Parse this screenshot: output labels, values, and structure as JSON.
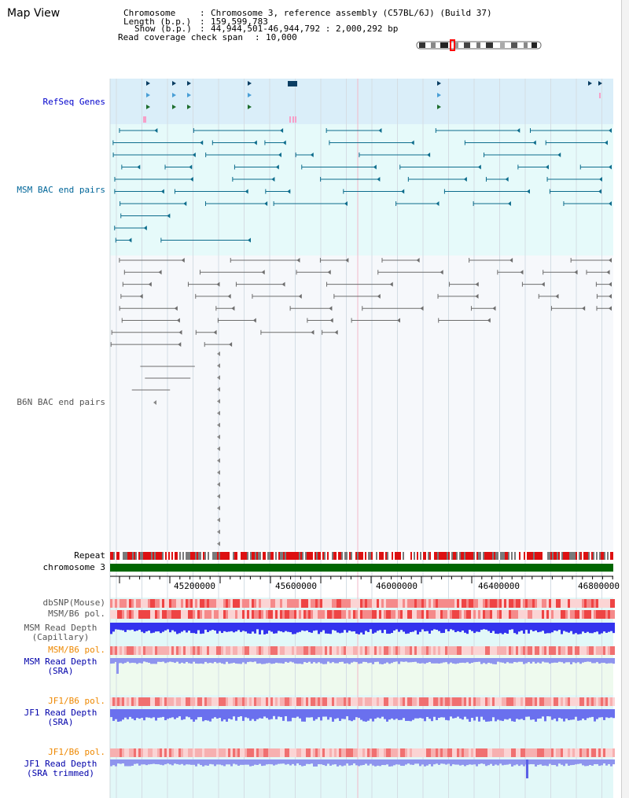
{
  "title": "Map View",
  "info": {
    "chromosome_key": "Chromosome",
    "chromosome_val": "Chromosome 3, reference assembly (C57BL/6J) (Build 37)",
    "length_key": "Length (b.p.)",
    "length_val": "159,599,783",
    "show_key": "Show (b.p.)",
    "show_val": "44,944,501-46,944,792 : 2,000,292 bp",
    "coverage_key": "Read coverage check span",
    "coverage_val": "10,000"
  },
  "tracks": {
    "refseq": "RefSeq Genes",
    "msm_bac": "MSM BAC end pairs",
    "b6n_bac": "B6N BAC end pairs",
    "repeat": "Repeat",
    "chromosome": "chromosome 3",
    "dbsnp": "dbSNP(Mouse)",
    "msm_b6_pol_1": "MSM/B6 pol.",
    "msm_depth_cap_1": "MSM Read Depth",
    "msm_depth_cap_2": "(Capillary)",
    "msm_b6_pol_2": "MSM/B6 pol.",
    "msm_depth_sra_1": "MSM Read Depth",
    "msm_depth_sra_2": "(SRA)",
    "jf1_b6_pol_1": "JF1/B6 pol.",
    "jf1_depth_sra_1": "JF1 Read Depth",
    "jf1_depth_sra_2": "(SRA)",
    "jf1_b6_pol_2": "JF1/B6 pol.",
    "jf1_depth_trim_1": "JF1 Read Depth",
    "jf1_depth_trim_2": "(SRA trimmed)"
  },
  "axis_ticks": [
    "45200000",
    "45600000",
    "46000000",
    "46400000",
    "46800000"
  ],
  "colors": {
    "refseq_label": "#0000cc",
    "msm_label": "#006699",
    "b6n_label": "#555555",
    "orange_label": "#ee8800",
    "blue_label": "#0000aa",
    "chromosome_bar": "#006600",
    "repeat_red": "#dd0000"
  }
}
